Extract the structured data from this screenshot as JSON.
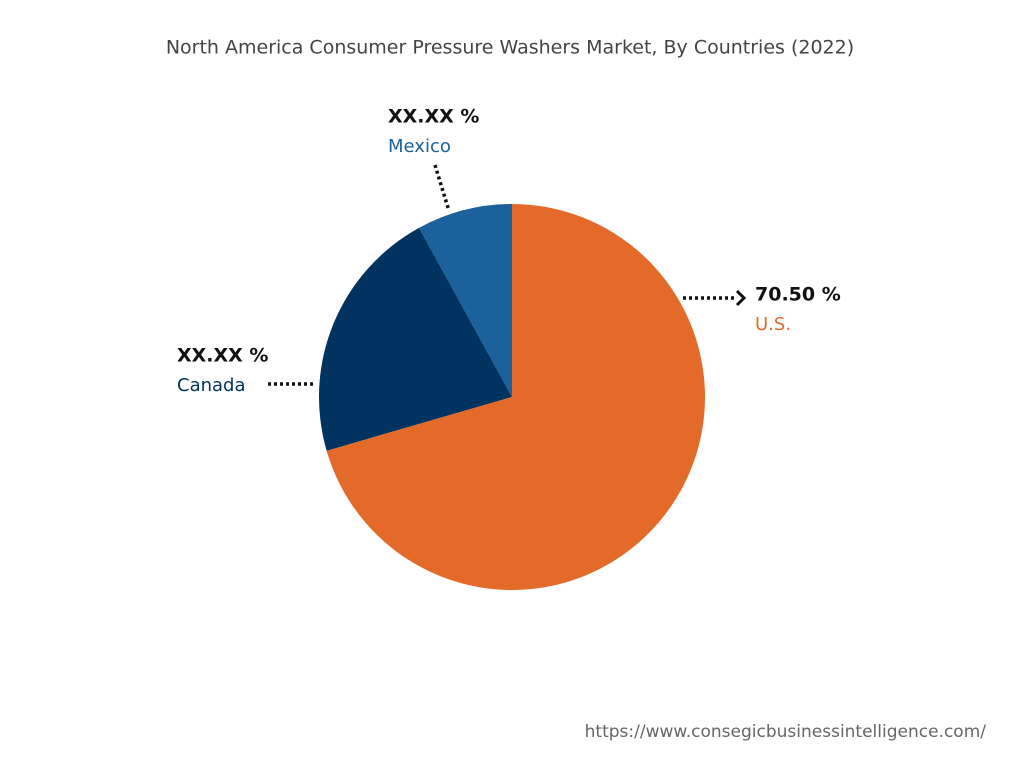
{
  "chart_data": {
    "type": "pie",
    "title": "North America Consumer Pressure Washers Market, By Countries (2022)",
    "categories": [
      "U.S.",
      "Canada",
      "Mexico"
    ],
    "values": [
      70.5,
      21.5,
      8.0
    ],
    "value_labels": [
      "70.50 %",
      "XX.XX %",
      "XX.XX %"
    ],
    "colors": [
      "#e36a28",
      "#00335f",
      "#1b629c"
    ],
    "source": "https://www.consegicbusinessintelligence.com/"
  }
}
